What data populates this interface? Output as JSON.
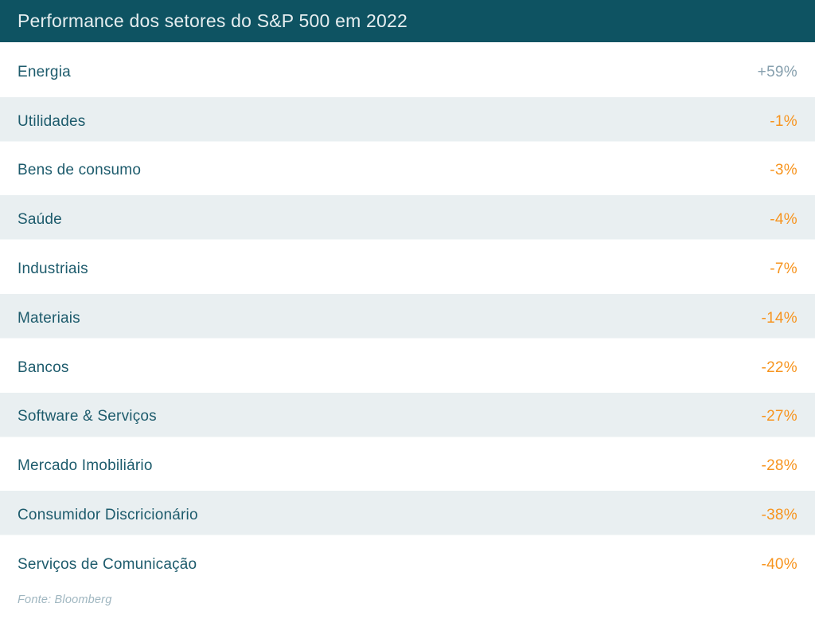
{
  "title": "Performance dos setores do S&P 500 em 2022",
  "source": "Fonte: Bloomberg",
  "colors": {
    "header_bg": "#0e5362",
    "header_text": "#e6eef0",
    "row_alt_bg": "#e9eff1",
    "label_text": "#1d5b6c",
    "positive_value": "#87a0ae",
    "negative_value": "#f7941e",
    "source_text": "#9fb6c0"
  },
  "rows": [
    {
      "label": "Energia",
      "value": "+59%"
    },
    {
      "label": "Utilidades",
      "value": "-1%"
    },
    {
      "label": "Bens de consumo",
      "value": "-3%"
    },
    {
      "label": "Saúde",
      "value": "-4%"
    },
    {
      "label": "Industriais",
      "value": "-7%"
    },
    {
      "label": "Materiais",
      "value": "-14%"
    },
    {
      "label": "Bancos",
      "value": "-22%"
    },
    {
      "label": "Software & Serviços",
      "value": "-27%"
    },
    {
      "label": "Mercado Imobiliário",
      "value": "-28%"
    },
    {
      "label": "Consumidor Discricionário",
      "value": "-38%"
    },
    {
      "label": "Serviços de Comunicação",
      "value": "-40%"
    }
  ],
  "chart_data": {
    "type": "table",
    "title": "Performance dos setores do S&P 500 em 2022",
    "categories": [
      "Energia",
      "Utilidades",
      "Bens de consumo",
      "Saúde",
      "Industriais",
      "Materiais",
      "Bancos",
      "Software & Serviços",
      "Mercado Imobiliário",
      "Consumidor Discricionário",
      "Serviços de Comunicação"
    ],
    "values": [
      59,
      -1,
      -3,
      -4,
      -7,
      -14,
      -22,
      -27,
      -28,
      -38,
      -40
    ],
    "unit": "%",
    "source": "Fonte: Bloomberg",
    "layout": "single-column table, labels left, values right-aligned, alternating row shading"
  }
}
